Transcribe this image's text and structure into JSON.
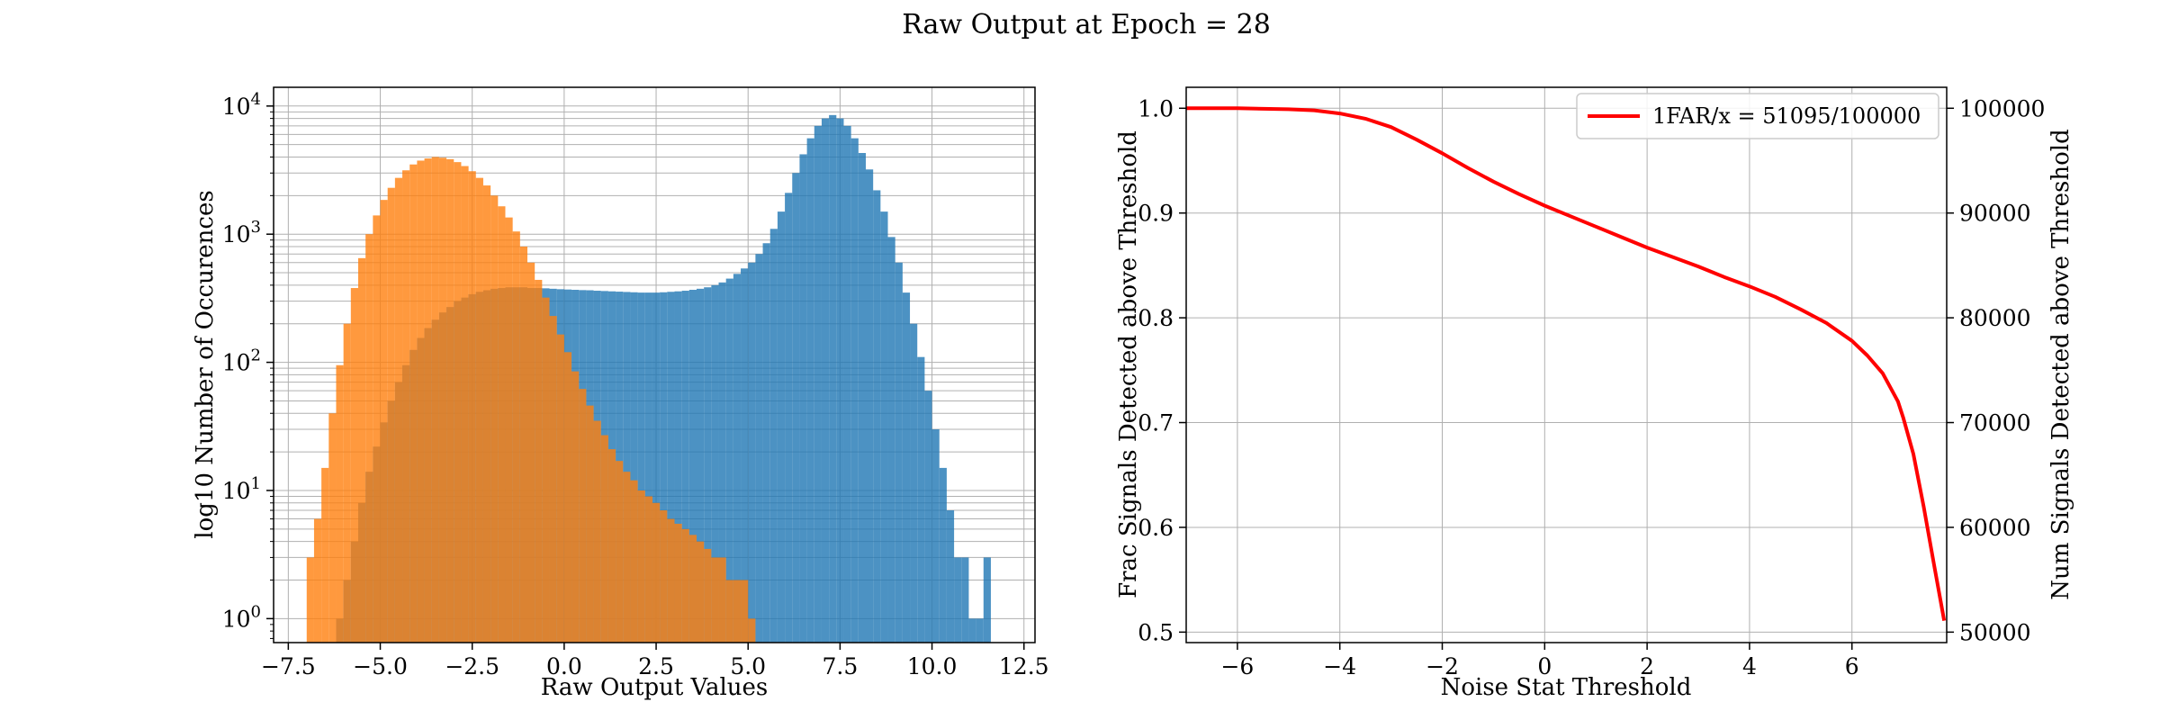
{
  "figure": {
    "title": "Raw Output at Epoch = 28"
  },
  "chart_data": [
    {
      "type": "histogram",
      "xlabel": "Raw Output Values",
      "ylabel": "log10 Number of Occurences",
      "xlim": [
        -7.9,
        12.8
      ],
      "ylim": [
        0.65,
        14000
      ],
      "yscale": "log",
      "grid": true,
      "xticks": [
        -7.5,
        -5.0,
        -2.5,
        0.0,
        2.5,
        5.0,
        7.5,
        10.0,
        12.5
      ],
      "xtick_labels": [
        "−7.5",
        "−5.0",
        "−2.5",
        "0.0",
        "2.5",
        "5.0",
        "7.5",
        "10.0",
        "12.5"
      ],
      "yticks": [
        {
          "mantissa": "10",
          "exp": "0",
          "value": 1
        },
        {
          "mantissa": "10",
          "exp": "1",
          "value": 10
        },
        {
          "mantissa": "10",
          "exp": "2",
          "value": 100
        },
        {
          "mantissa": "10",
          "exp": "3",
          "value": 1000
        },
        {
          "mantissa": "10",
          "exp": "4",
          "value": 10000
        }
      ],
      "series": [
        {
          "color": "#1f77b4",
          "alpha": 0.8,
          "bin_start": -6.2,
          "bin_width": 0.2,
          "counts": [
            1,
            2,
            4,
            8,
            14,
            22,
            34,
            50,
            70,
            95,
            125,
            155,
            185,
            215,
            245,
            270,
            300,
            320,
            340,
            355,
            365,
            375,
            380,
            385,
            385,
            385,
            380,
            380,
            378,
            375,
            372,
            370,
            368,
            366,
            365,
            362,
            360,
            358,
            356,
            354,
            352,
            350,
            350,
            350,
            352,
            355,
            358,
            362,
            368,
            375,
            385,
            400,
            420,
            450,
            490,
            540,
            600,
            700,
            850,
            1100,
            1500,
            2100,
            3000,
            4200,
            5600,
            7000,
            8000,
            8500,
            8000,
            7000,
            5600,
            4300,
            3200,
            2200,
            1500,
            950,
            600,
            350,
            200,
            110,
            60,
            30,
            15,
            7,
            3,
            3,
            1,
            1,
            3
          ]
        },
        {
          "color": "#ff7f0e",
          "alpha": 0.8,
          "bin_start": -7.0,
          "bin_width": 0.2,
          "counts": [
            3,
            6,
            15,
            40,
            95,
            200,
            380,
            650,
            1000,
            1400,
            1850,
            2300,
            2750,
            3150,
            3500,
            3750,
            3900,
            4000,
            3950,
            3850,
            3650,
            3400,
            3100,
            2750,
            2400,
            2000,
            1650,
            1350,
            1050,
            800,
            600,
            440,
            320,
            230,
            165,
            120,
            85,
            62,
            46,
            35,
            27,
            21,
            17,
            14,
            12,
            10,
            9,
            8,
            7,
            6,
            5.5,
            5,
            4.5,
            4,
            3.5,
            3,
            3,
            2,
            2,
            2,
            1
          ]
        }
      ]
    },
    {
      "type": "line",
      "xlabel": "Noise Stat Threshold",
      "ylabel": "Frac Signals Detected above Threshold",
      "ylabel_right": "Num Signals Detected above Threshold",
      "xlim": [
        -7.0,
        7.85
      ],
      "ylim": [
        0.49,
        1.02
      ],
      "ylim_right": [
        49000,
        102000
      ],
      "grid": true,
      "xticks": [
        -6,
        -4,
        -2,
        0,
        2,
        4,
        6
      ],
      "xtick_labels": [
        "−6",
        "−4",
        "−2",
        "0",
        "2",
        "4",
        "6"
      ],
      "yticks": [
        0.5,
        0.6,
        0.7,
        0.8,
        0.9,
        1.0
      ],
      "ytick_labels": [
        "0.5",
        "0.6",
        "0.7",
        "0.8",
        "0.9",
        "1.0"
      ],
      "yticks_right": [
        50000,
        60000,
        70000,
        80000,
        90000,
        100000
      ],
      "ytick_labels_right": [
        "50000",
        "60000",
        "70000",
        "80000",
        "90000",
        "100000"
      ],
      "legend": "upper right",
      "series": [
        {
          "name": "1FAR/x = 51095/100000",
          "color": "#ff0000",
          "x": [
            -7.0,
            -6.0,
            -5.0,
            -4.5,
            -4.0,
            -3.5,
            -3.0,
            -2.5,
            -2.0,
            -1.5,
            -1.0,
            -0.5,
            0.0,
            0.5,
            1.0,
            1.5,
            2.0,
            2.5,
            3.0,
            3.5,
            4.0,
            4.5,
            5.0,
            5.5,
            6.0,
            6.3,
            6.6,
            6.9,
            7.0,
            7.2,
            7.4,
            7.6,
            7.8
          ],
          "y": [
            1.0,
            1.0,
            0.999,
            0.998,
            0.995,
            0.99,
            0.982,
            0.97,
            0.957,
            0.943,
            0.93,
            0.918,
            0.907,
            0.897,
            0.887,
            0.877,
            0.867,
            0.858,
            0.849,
            0.839,
            0.83,
            0.82,
            0.808,
            0.795,
            0.778,
            0.764,
            0.747,
            0.72,
            0.705,
            0.67,
            0.62,
            0.565,
            0.511
          ]
        }
      ]
    }
  ]
}
